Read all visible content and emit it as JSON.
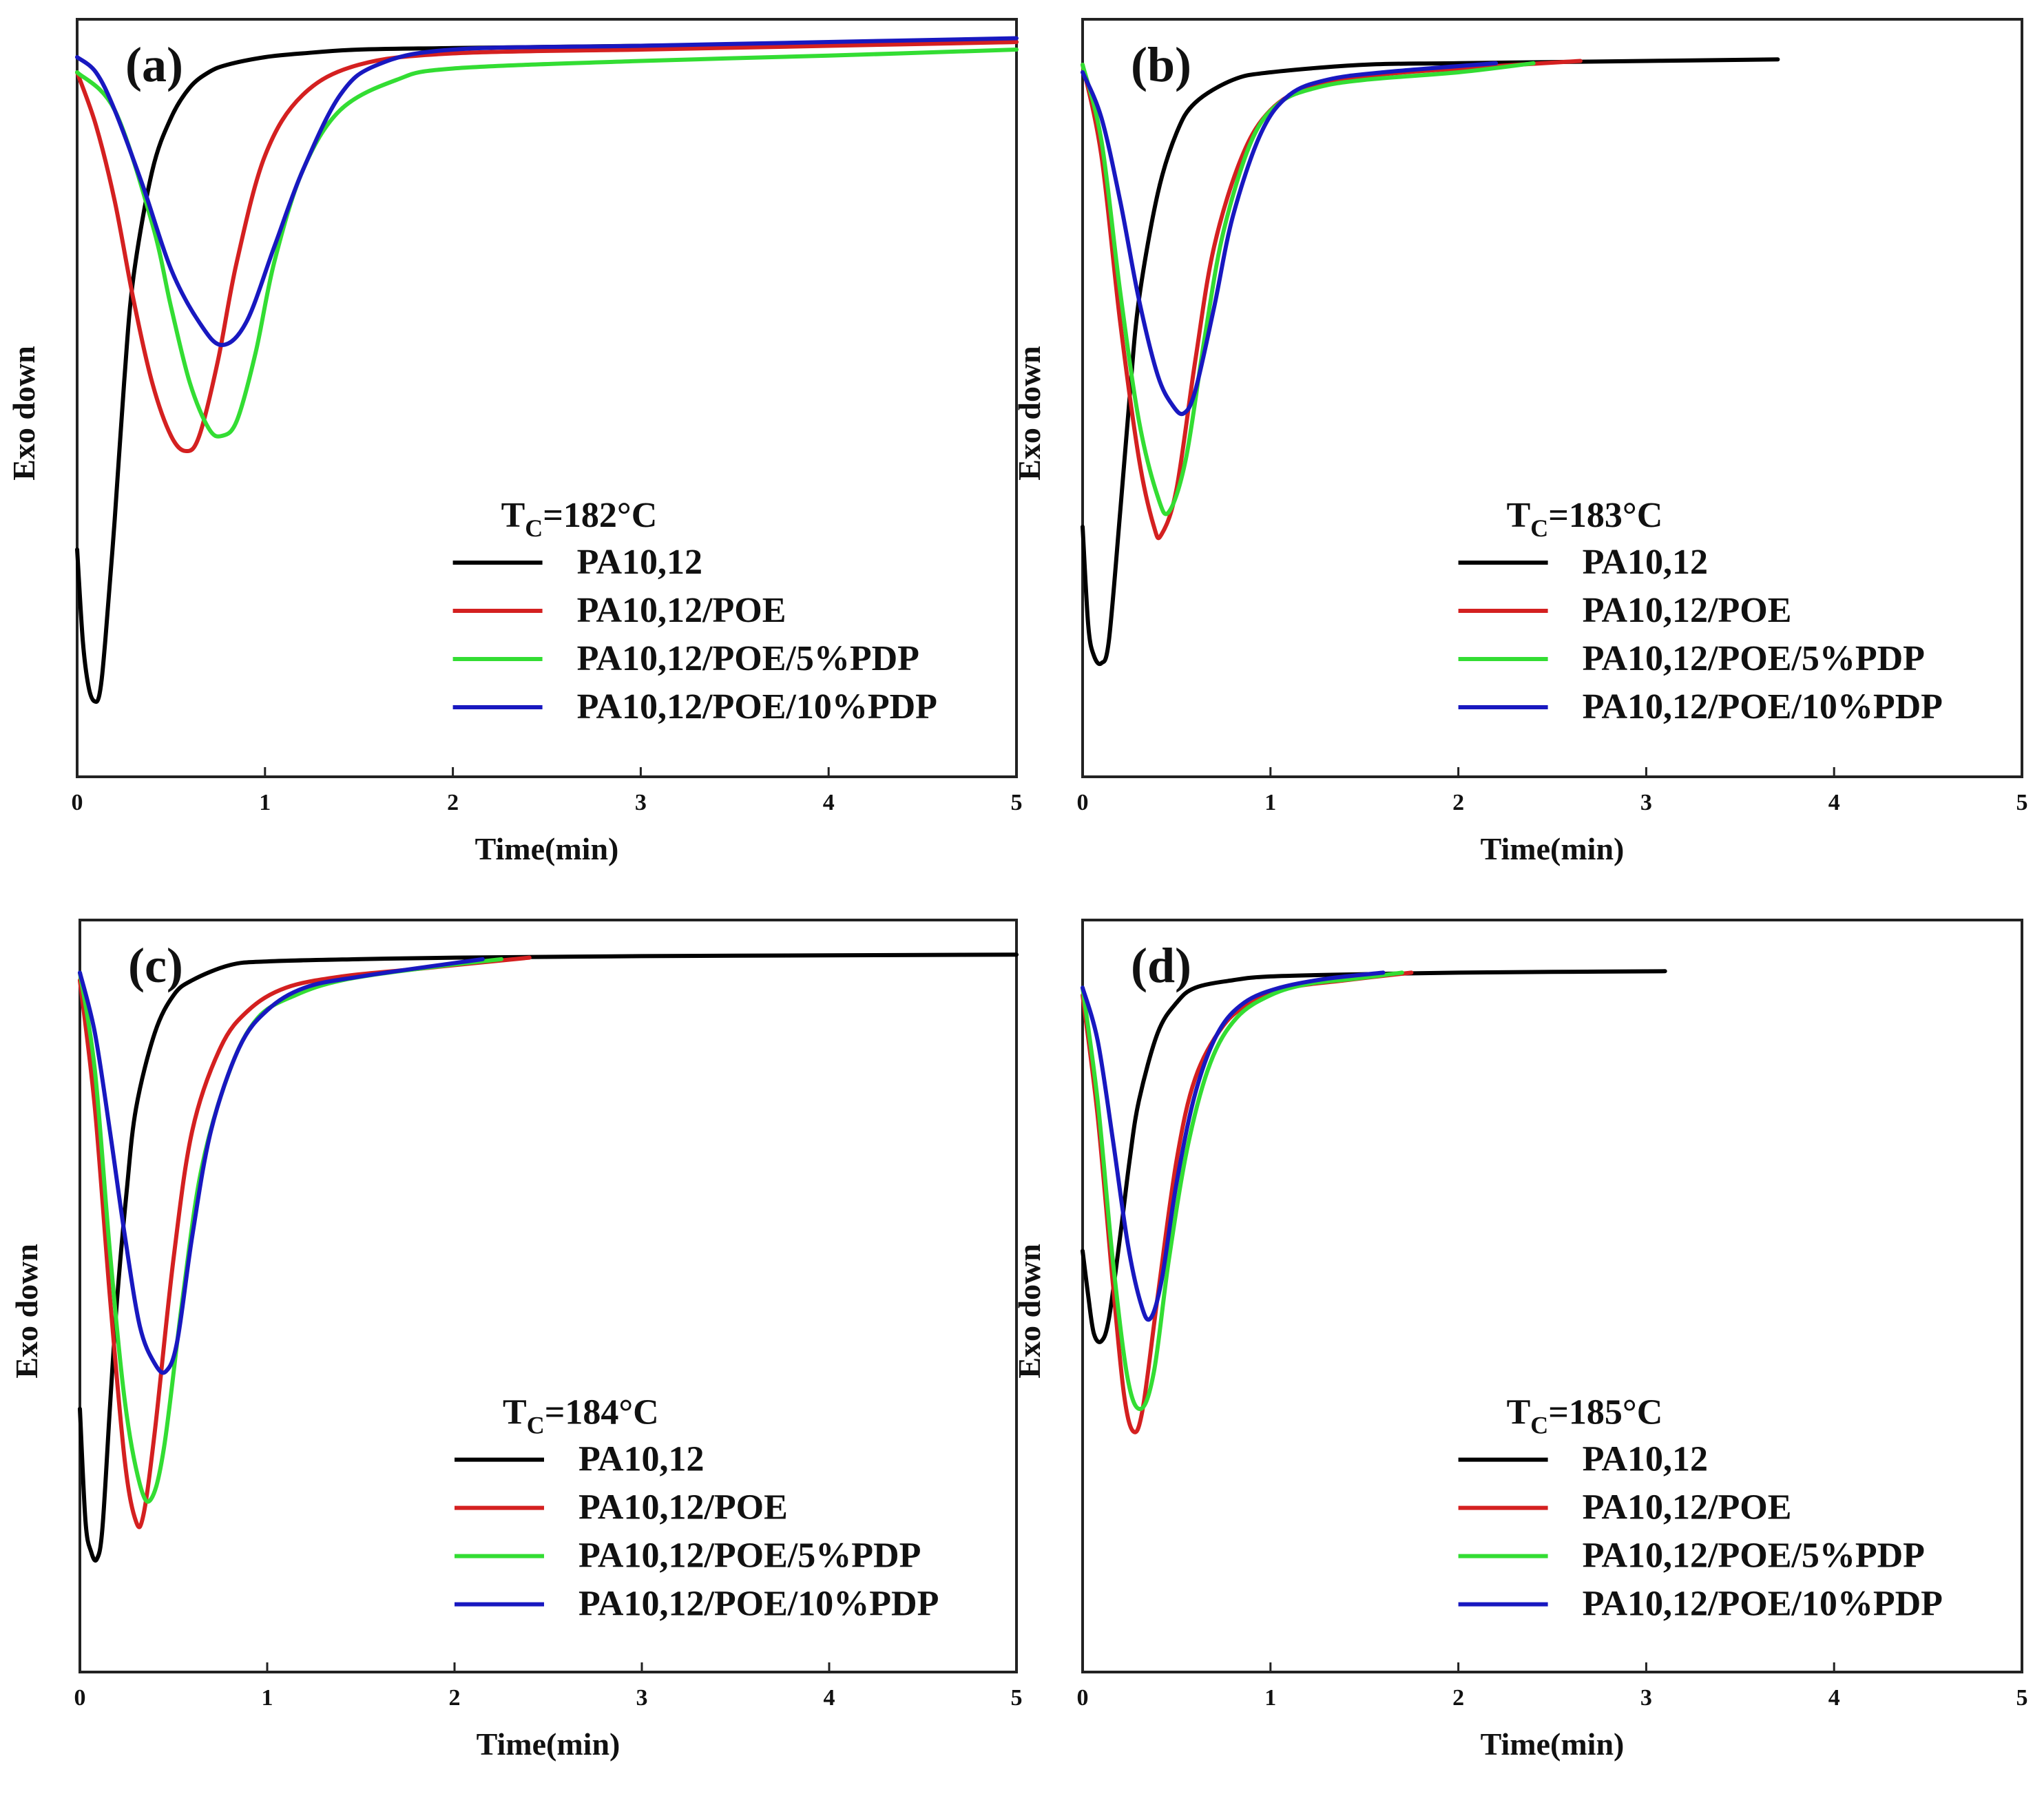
{
  "chart_data": [
    {
      "type": "line",
      "panel": "(a)",
      "xlabel": "Time(min)",
      "ylabel": "Exo down",
      "xlim": [
        0,
        5
      ],
      "ylim": [
        0,
        1
      ],
      "xticks": [
        "0",
        "1",
        "2",
        "3",
        "4",
        "5"
      ],
      "legend": {
        "title_main": "T",
        "title_sub": "C",
        "title_rest": "=182°C",
        "position": "bottom-right"
      },
      "series": [
        {
          "name": "PA10,12",
          "color": "#000000",
          "x": [
            0,
            0.03,
            0.06,
            0.09,
            0.12,
            0.15,
            0.2,
            0.25,
            0.3,
            0.4,
            0.5,
            0.6,
            0.7,
            0.8,
            1.0,
            1.2,
            1.5,
            2.0,
            3.0,
            4.0,
            5.0
          ],
          "y": [
            0.3,
            0.18,
            0.12,
            0.1,
            0.11,
            0.18,
            0.34,
            0.52,
            0.66,
            0.8,
            0.87,
            0.91,
            0.93,
            0.94,
            0.95,
            0.955,
            0.96,
            0.962,
            0.965,
            0.968,
            0.97
          ]
        },
        {
          "name": "PA10,12/POE",
          "color": "#d42020",
          "x": [
            0,
            0.1,
            0.2,
            0.3,
            0.4,
            0.5,
            0.58,
            0.65,
            0.75,
            0.85,
            1.0,
            1.2,
            1.5,
            2.0,
            3.0,
            4.0,
            5.0
          ],
          "y": [
            0.93,
            0.86,
            0.76,
            0.63,
            0.52,
            0.45,
            0.43,
            0.45,
            0.55,
            0.68,
            0.82,
            0.9,
            0.94,
            0.955,
            0.96,
            0.965,
            0.97
          ]
        },
        {
          "name": "PA10,12/POE/5%PDP",
          "color": "#33dd33",
          "x": [
            0,
            0.2,
            0.4,
            0.5,
            0.6,
            0.7,
            0.77,
            0.85,
            0.95,
            1.05,
            1.2,
            1.4,
            1.7,
            2.0,
            3.0,
            4.0,
            5.0
          ],
          "y": [
            0.93,
            0.88,
            0.73,
            0.62,
            0.52,
            0.46,
            0.45,
            0.47,
            0.56,
            0.68,
            0.8,
            0.88,
            0.92,
            0.935,
            0.945,
            0.952,
            0.96
          ]
        },
        {
          "name": "PA10,12/POE/10%PDP",
          "color": "#1818c0",
          "x": [
            0,
            0.1,
            0.2,
            0.35,
            0.5,
            0.65,
            0.77,
            0.9,
            1.05,
            1.2,
            1.4,
            1.6,
            2.0,
            3.0,
            4.0,
            5.0
          ],
          "y": [
            0.95,
            0.93,
            0.88,
            0.78,
            0.67,
            0.6,
            0.57,
            0.6,
            0.7,
            0.8,
            0.9,
            0.94,
            0.96,
            0.965,
            0.97,
            0.975
          ]
        }
      ]
    },
    {
      "type": "line",
      "panel": "(b)",
      "xlabel": "Time(min)",
      "ylabel": "Exo down",
      "xlim": [
        0,
        5
      ],
      "ylim": [
        0,
        1
      ],
      "xticks": [
        "0",
        "1",
        "2",
        "3",
        "4",
        "5"
      ],
      "legend": {
        "title_main": "T",
        "title_sub": "C",
        "title_rest": "=183°C",
        "position": "bottom-right"
      },
      "series": [
        {
          "name": "PA10,12",
          "color": "#000000",
          "x": [
            0,
            0.03,
            0.06,
            0.1,
            0.14,
            0.2,
            0.25,
            0.3,
            0.4,
            0.5,
            0.6,
            0.8,
            1.0,
            1.5,
            2.0,
            3.0,
            3.7
          ],
          "y": [
            0.33,
            0.2,
            0.16,
            0.15,
            0.18,
            0.35,
            0.5,
            0.63,
            0.77,
            0.85,
            0.89,
            0.92,
            0.93,
            0.94,
            0.942,
            0.945,
            0.947
          ]
        },
        {
          "name": "PA10,12/POE",
          "color": "#d42020",
          "x": [
            0,
            0.1,
            0.2,
            0.3,
            0.38,
            0.42,
            0.5,
            0.6,
            0.7,
            0.85,
            1.0,
            1.2,
            1.5,
            2.0,
            2.65
          ],
          "y": [
            0.94,
            0.82,
            0.6,
            0.42,
            0.33,
            0.32,
            0.38,
            0.55,
            0.7,
            0.82,
            0.88,
            0.91,
            0.925,
            0.935,
            0.945
          ]
        },
        {
          "name": "PA10,12/POE/5%PDP",
          "color": "#33dd33",
          "x": [
            0,
            0.1,
            0.2,
            0.3,
            0.4,
            0.46,
            0.55,
            0.65,
            0.75,
            0.9,
            1.05,
            1.25,
            1.5,
            2.0,
            2.4
          ],
          "y": [
            0.94,
            0.84,
            0.64,
            0.47,
            0.37,
            0.35,
            0.42,
            0.58,
            0.72,
            0.84,
            0.89,
            0.91,
            0.92,
            0.93,
            0.942
          ]
        },
        {
          "name": "PA10,12/POE/10%PDP",
          "color": "#1818c0",
          "x": [
            0,
            0.1,
            0.2,
            0.3,
            0.4,
            0.48,
            0.54,
            0.6,
            0.7,
            0.8,
            0.95,
            1.1,
            1.3,
            1.6,
            2.2
          ],
          "y": [
            0.93,
            0.87,
            0.76,
            0.63,
            0.53,
            0.49,
            0.48,
            0.51,
            0.62,
            0.74,
            0.85,
            0.9,
            0.92,
            0.93,
            0.942
          ]
        }
      ]
    },
    {
      "type": "line",
      "panel": "(c)",
      "xlabel": "Time(min)",
      "ylabel": "Exo down",
      "xlim": [
        0,
        5
      ],
      "ylim": [
        0,
        1
      ],
      "xticks": [
        "0",
        "1",
        "2",
        "3",
        "4",
        "5"
      ],
      "legend": {
        "title_main": "T",
        "title_sub": "C",
        "title_rest": "=184°C",
        "position": "bottom-right"
      },
      "series": [
        {
          "name": "PA10,12",
          "color": "#000000",
          "x": [
            0,
            0.03,
            0.06,
            0.09,
            0.12,
            0.16,
            0.2,
            0.25,
            0.3,
            0.4,
            0.5,
            0.6,
            0.8,
            1.0,
            1.5,
            2.0,
            3.0,
            4.0,
            5.0
          ],
          "y": [
            0.35,
            0.2,
            0.16,
            0.15,
            0.19,
            0.35,
            0.5,
            0.64,
            0.75,
            0.85,
            0.9,
            0.92,
            0.94,
            0.945,
            0.948,
            0.95,
            0.952,
            0.953,
            0.954
          ]
        },
        {
          "name": "PA10,12/POE",
          "color": "#d42020",
          "x": [
            0,
            0.08,
            0.16,
            0.24,
            0.3,
            0.34,
            0.4,
            0.5,
            0.6,
            0.75,
            0.9,
            1.1,
            1.4,
            1.8,
            2.4
          ],
          "y": [
            0.92,
            0.75,
            0.5,
            0.28,
            0.2,
            0.21,
            0.32,
            0.55,
            0.72,
            0.83,
            0.88,
            0.91,
            0.925,
            0.935,
            0.95
          ]
        },
        {
          "name": "PA10,12/POE/5%PDP",
          "color": "#33dd33",
          "x": [
            0,
            0.08,
            0.16,
            0.24,
            0.32,
            0.38,
            0.45,
            0.55,
            0.65,
            0.8,
            0.95,
            1.15,
            1.4,
            1.8,
            2.25
          ],
          "y": [
            0.93,
            0.8,
            0.56,
            0.36,
            0.25,
            0.23,
            0.3,
            0.5,
            0.67,
            0.8,
            0.87,
            0.9,
            0.92,
            0.935,
            0.948
          ]
        },
        {
          "name": "PA10,12/POE/10%PDP",
          "color": "#1818c0",
          "x": [
            0,
            0.08,
            0.16,
            0.24,
            0.32,
            0.4,
            0.46,
            0.52,
            0.6,
            0.7,
            0.85,
            1.0,
            1.2,
            1.5,
            2.15
          ],
          "y": [
            0.93,
            0.85,
            0.72,
            0.58,
            0.46,
            0.41,
            0.4,
            0.44,
            0.58,
            0.72,
            0.83,
            0.88,
            0.91,
            0.925,
            0.948
          ]
        }
      ]
    },
    {
      "type": "line",
      "panel": "(d)",
      "xlabel": "Time(min)",
      "ylabel": "Exo down",
      "xlim": [
        0,
        5
      ],
      "ylim": [
        0,
        1
      ],
      "xticks": [
        "0",
        "1",
        "2",
        "3",
        "4",
        "5"
      ],
      "legend": {
        "title_main": "T",
        "title_sub": "C",
        "title_rest": "=185°C",
        "position": "bottom-right"
      },
      "series": [
        {
          "name": "PA10,12",
          "color": "#000000",
          "x": [
            0,
            0.03,
            0.06,
            0.1,
            0.14,
            0.2,
            0.25,
            0.3,
            0.4,
            0.5,
            0.6,
            0.8,
            1.0,
            1.5,
            2.0,
            2.5,
            3.1
          ],
          "y": [
            0.56,
            0.5,
            0.45,
            0.44,
            0.47,
            0.58,
            0.68,
            0.76,
            0.85,
            0.89,
            0.91,
            0.92,
            0.925,
            0.928,
            0.93,
            0.931,
            0.932
          ]
        },
        {
          "name": "PA10,12/POE",
          "color": "#d42020",
          "x": [
            0,
            0.08,
            0.16,
            0.22,
            0.27,
            0.32,
            0.4,
            0.5,
            0.6,
            0.75,
            0.9,
            1.1,
            1.4,
            1.75
          ],
          "y": [
            0.9,
            0.74,
            0.52,
            0.37,
            0.32,
            0.35,
            0.5,
            0.68,
            0.79,
            0.86,
            0.89,
            0.91,
            0.92,
            0.93
          ]
        },
        {
          "name": "PA10,12/POE/5%PDP",
          "color": "#33dd33",
          "x": [
            0,
            0.08,
            0.16,
            0.24,
            0.31,
            0.38,
            0.46,
            0.56,
            0.68,
            0.82,
            1.0,
            1.2,
            1.45,
            1.7
          ],
          "y": [
            0.91,
            0.76,
            0.55,
            0.39,
            0.35,
            0.4,
            0.55,
            0.7,
            0.81,
            0.87,
            0.9,
            0.915,
            0.922,
            0.93
          ]
        },
        {
          "name": "PA10,12/POE/10%PDP",
          "color": "#1818c0",
          "x": [
            0,
            0.08,
            0.16,
            0.24,
            0.31,
            0.36,
            0.42,
            0.5,
            0.6,
            0.72,
            0.86,
            1.05,
            1.3,
            1.6
          ],
          "y": [
            0.91,
            0.84,
            0.71,
            0.57,
            0.49,
            0.47,
            0.52,
            0.65,
            0.77,
            0.85,
            0.89,
            0.91,
            0.922,
            0.93
          ]
        }
      ]
    }
  ]
}
